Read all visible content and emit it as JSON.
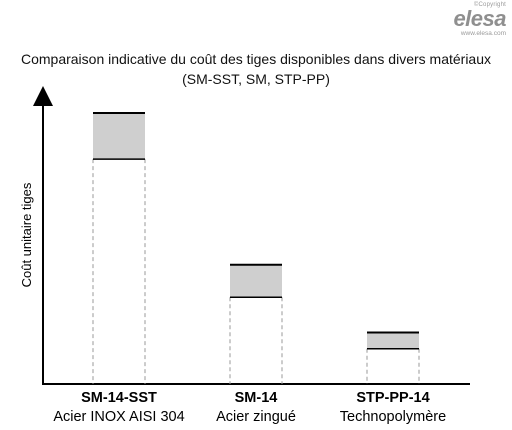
{
  "logo": {
    "copyright": "©Copyright",
    "brand": "elesa",
    "url": "www.elesa.com"
  },
  "chart_data": {
    "type": "range-bar",
    "title": "Comparaison indicative du coût des tiges disponibles dans divers matériaux",
    "subtitle": "(SM-SST, SM, STP-PP)",
    "xlabel": "",
    "ylabel": "Coût unitaire tiges",
    "ylim": [
      0,
      100
    ],
    "grid": false,
    "legend": "none",
    "categories": [
      {
        "name": "SM-14-SST",
        "sub": "Acier INOX AISI 304",
        "low": 83,
        "high": 100
      },
      {
        "name": "SM-14",
        "sub": "Acier zingué",
        "low": 32,
        "high": 44
      },
      {
        "name": "STP-PP-14",
        "sub": "Technopolymère",
        "low": 13,
        "high": 19
      }
    ],
    "colors": {
      "range_fill": "#cfcfcf",
      "range_stroke": "#000000",
      "below_stroke": "#9a9a9a",
      "axis": "#000000"
    }
  }
}
